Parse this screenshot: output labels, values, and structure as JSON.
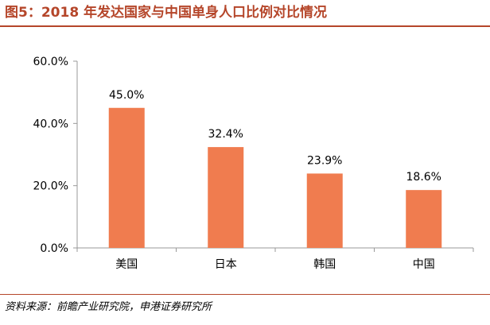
{
  "title": "图5：2018 年发达国家与中国单身人口比例对比情况",
  "source": "资料来源：前瞻产业研究院，申港证券研究所",
  "colors": {
    "bar": "#f07c4f",
    "accent": "#b5462a",
    "axis": "#999999"
  },
  "chart_data": {
    "type": "bar",
    "categories": [
      "美国",
      "日本",
      "韩国",
      "中国"
    ],
    "values": [
      45.0,
      32.4,
      23.9,
      18.6
    ],
    "value_labels": [
      "45.0%",
      "32.4%",
      "23.9%",
      "18.6%"
    ],
    "yticks": [
      0,
      20,
      40,
      60
    ],
    "ytick_labels": [
      "0.0%",
      "20.0%",
      "40.0%",
      "60.0%"
    ],
    "ylim": [
      0,
      60
    ],
    "grid": false,
    "legend": "none"
  }
}
